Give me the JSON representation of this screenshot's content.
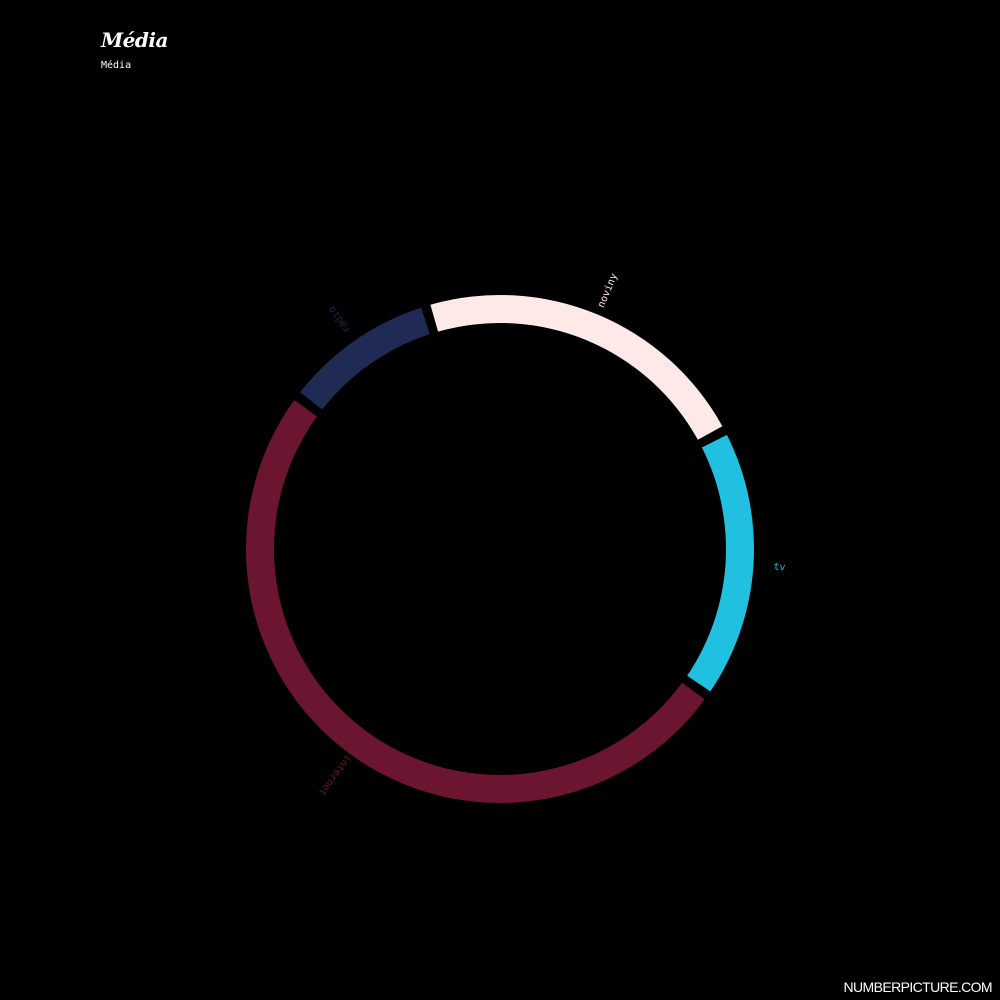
{
  "title": "Média",
  "subtitle": "Média",
  "watermark": "NUMBERPICTURE.COM",
  "chart_data": {
    "type": "pie",
    "style": "donut-ring",
    "categories": [
      "noviny",
      "tv",
      "internet",
      "radio"
    ],
    "values": [
      22,
      17.5,
      50.5,
      10
    ],
    "colors": [
      "#fde9e8",
      "#22c0e0",
      "#6c1530",
      "#1f2a55"
    ],
    "start_angle_deg": -17
  }
}
